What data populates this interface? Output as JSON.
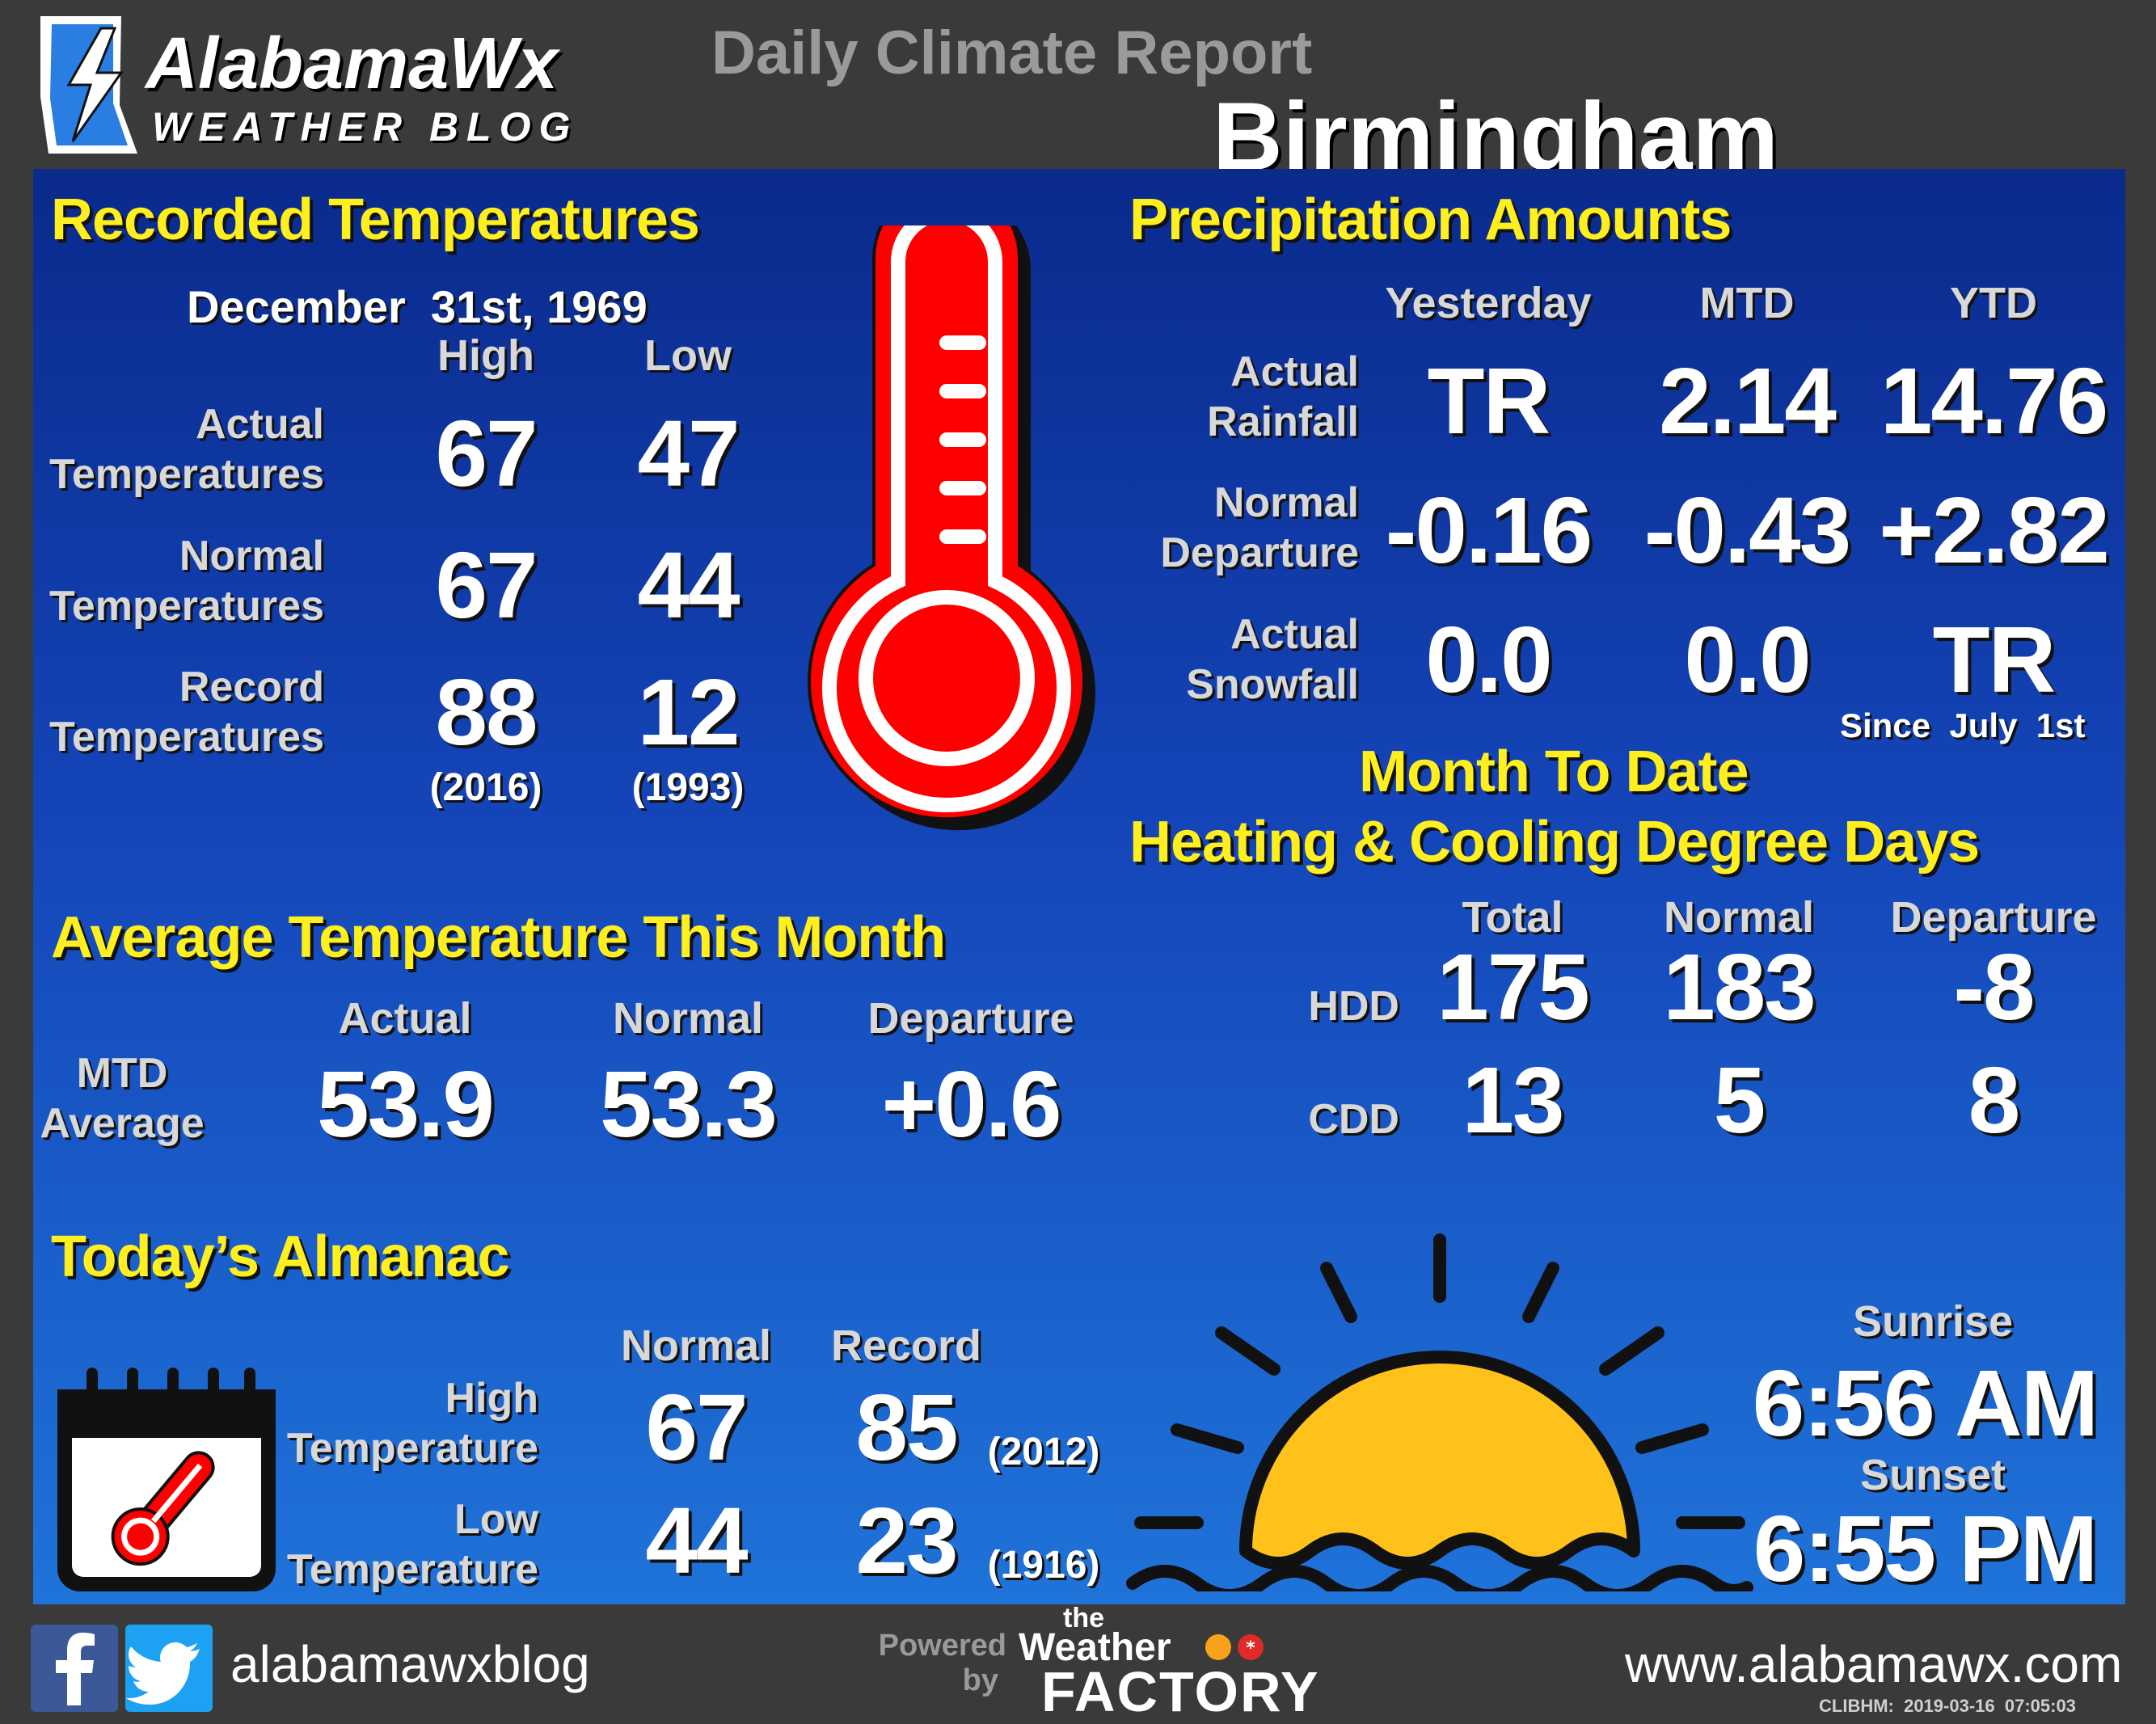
{
  "header": {
    "logo_line1": "AlabamaWx",
    "logo_line2": "WEATHER BLOG",
    "title": "Daily Climate Report",
    "city": "Birmingham"
  },
  "recorded_temps": {
    "heading": "Recorded Temperatures",
    "date": "December  31st, 1969",
    "col_high": "High",
    "col_low": "Low",
    "rows": [
      {
        "label1": "Actual",
        "label2": "Temperatures",
        "high": "67",
        "low": "47"
      },
      {
        "label1": "Normal",
        "label2": "Temperatures",
        "high": "67",
        "low": "44"
      },
      {
        "label1": "Record",
        "label2": "Temperatures",
        "high": "88",
        "low": "12",
        "high_year": "(2016)",
        "low_year": "(1993)"
      }
    ]
  },
  "precip": {
    "heading": "Precipitation Amounts",
    "cols": [
      "Yesterday",
      "MTD",
      "YTD"
    ],
    "rows": [
      {
        "label1": "Actual",
        "label2": "Rainfall",
        "values": [
          "TR",
          "2.14",
          "14.76"
        ]
      },
      {
        "label1": "Normal",
        "label2": "Departure",
        "values": [
          "-0.16",
          "-0.43",
          "+2.82"
        ]
      },
      {
        "label1": "Actual",
        "label2": "Snowfall",
        "values": [
          "0.0",
          "0.0",
          "TR"
        ]
      }
    ],
    "since_note": "Since  July  1st"
  },
  "avg_temp": {
    "heading": "Average Temperature This Month",
    "cols": [
      "Actual",
      "Normal",
      "Departure"
    ],
    "label1": "MTD",
    "label2": "Average",
    "values": [
      "53.9",
      "53.3",
      "+0.6"
    ]
  },
  "degree_days": {
    "heading1": "Month To Date",
    "heading2": "Heating & Cooling Degree Days",
    "cols": [
      "Total",
      "Normal",
      "Departure"
    ],
    "rows": [
      {
        "label": "HDD",
        "values": [
          "175",
          "183",
          "-8"
        ]
      },
      {
        "label": "CDD",
        "values": [
          "13",
          "5",
          "8"
        ]
      }
    ]
  },
  "almanac": {
    "heading": "Today’s Almanac",
    "cols": [
      "Normal",
      "Record"
    ],
    "rows": [
      {
        "label1": "High",
        "label2": "Temperature",
        "normal": "67",
        "record": "85",
        "year": "(2012)"
      },
      {
        "label1": "Low",
        "label2": "Temperature",
        "normal": "44",
        "record": "23",
        "year": "(1916)"
      }
    ]
  },
  "sun": {
    "sunrise_label": "Sunrise",
    "sunrise": "6:56 AM",
    "sunset_label": "Sunset",
    "sunset": "6:55 PM"
  },
  "footer": {
    "social_handle": "alabamawxblog",
    "powered": "Powered",
    "by": "by",
    "brand_the": "the",
    "brand_weather": "Weather",
    "brand_factory": "FACTORY",
    "website": "www.alabamawx.com",
    "stamp": "CLIBHM:  2019-03-16  07:05:03"
  },
  "colors": {
    "accent_yellow": "#ffef1f",
    "thermometer_red": "#ff0000",
    "sun_yellow": "#ffc21a",
    "facebook": "#3b5998",
    "twitter": "#1da1f2"
  },
  "icons": [
    "lightning-logo-icon",
    "thermometer-icon",
    "calendar-icon",
    "sun-icon",
    "facebook-icon",
    "twitter-icon"
  ]
}
